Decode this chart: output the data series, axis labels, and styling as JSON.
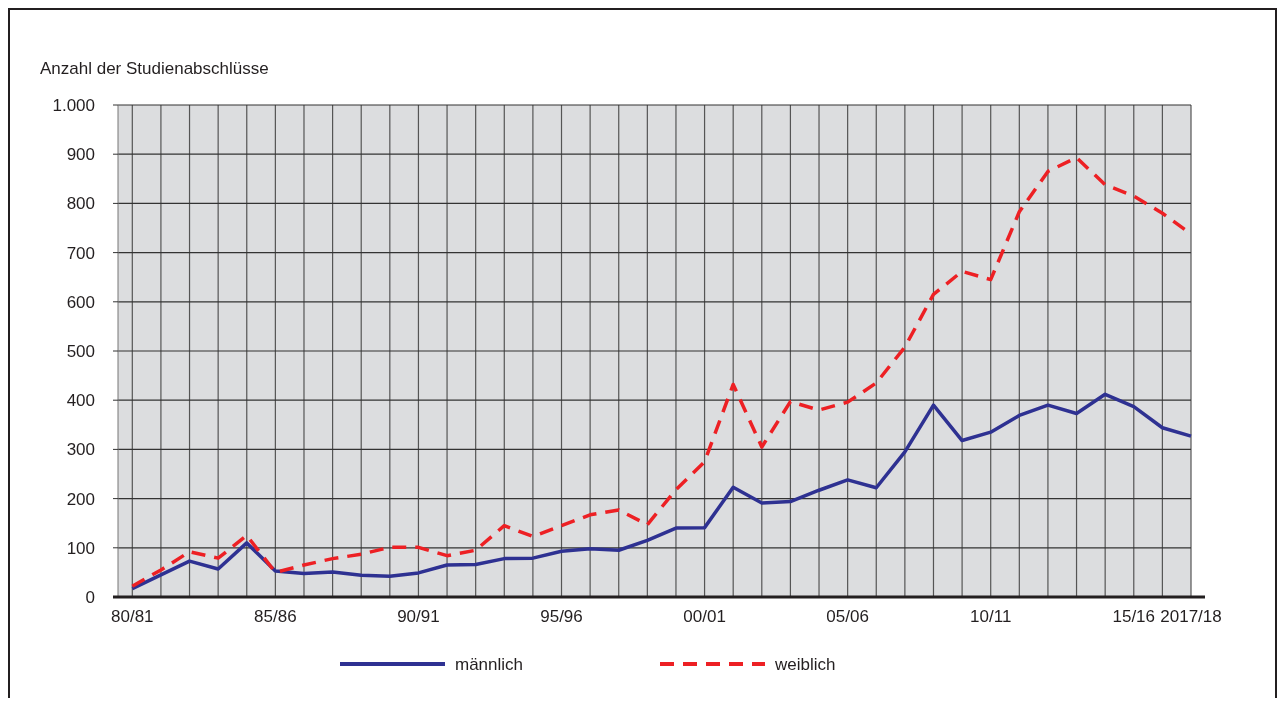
{
  "chart_data": {
    "type": "line",
    "ylabel": "Anzahl der Studienabschlüsse",
    "categories": [
      "80/81",
      null,
      null,
      null,
      null,
      "85/86",
      null,
      null,
      null,
      null,
      "90/91",
      null,
      null,
      null,
      null,
      "95/96",
      null,
      null,
      null,
      null,
      "00/01",
      null,
      null,
      null,
      null,
      "05/06",
      null,
      null,
      null,
      null,
      "10/11",
      null,
      null,
      null,
      null,
      "15/16",
      null,
      "2017/18"
    ],
    "series": [
      {
        "name": "männlich",
        "color": "#2e3192",
        "line_style": "solid",
        "values": [
          17,
          45,
          73,
          57,
          110,
          53,
          48,
          51,
          44,
          42,
          49,
          65,
          66,
          78,
          79,
          93,
          98,
          95,
          115,
          140,
          141,
          223,
          191,
          194,
          217,
          238,
          222,
          295,
          390,
          318,
          335,
          369,
          390,
          373,
          412,
          387,
          344,
          327
        ]
      },
      {
        "name": "weiblich",
        "color": "#ed2024",
        "line_style": "dashed",
        "values": [
          22,
          55,
          92,
          79,
          125,
          50,
          65,
          78,
          87,
          101,
          101,
          84,
          95,
          145,
          123,
          145,
          167,
          177,
          147,
          218,
          275,
          432,
          305,
          397,
          380,
          396,
          435,
          508,
          615,
          662,
          645,
          783,
          865,
          893,
          838,
          815,
          780,
          738
        ]
      }
    ],
    "ylim": [
      0,
      1000
    ],
    "yticks": [
      0,
      {
        "value": 100,
        "label": "100"
      },
      {
        "value": 200,
        "label": "200"
      },
      {
        "value": 300,
        "label": "300"
      },
      {
        "value": 400,
        "label": "400"
      },
      {
        "value": 500,
        "label": "500"
      },
      {
        "value": 600,
        "label": "600"
      },
      {
        "value": 700,
        "label": "700"
      },
      {
        "value": 800,
        "label": "800"
      },
      {
        "value": 900,
        "label": "900"
      },
      {
        "value": 1000,
        "label": "1.000"
      }
    ],
    "grid": true,
    "legend": "bottom"
  }
}
